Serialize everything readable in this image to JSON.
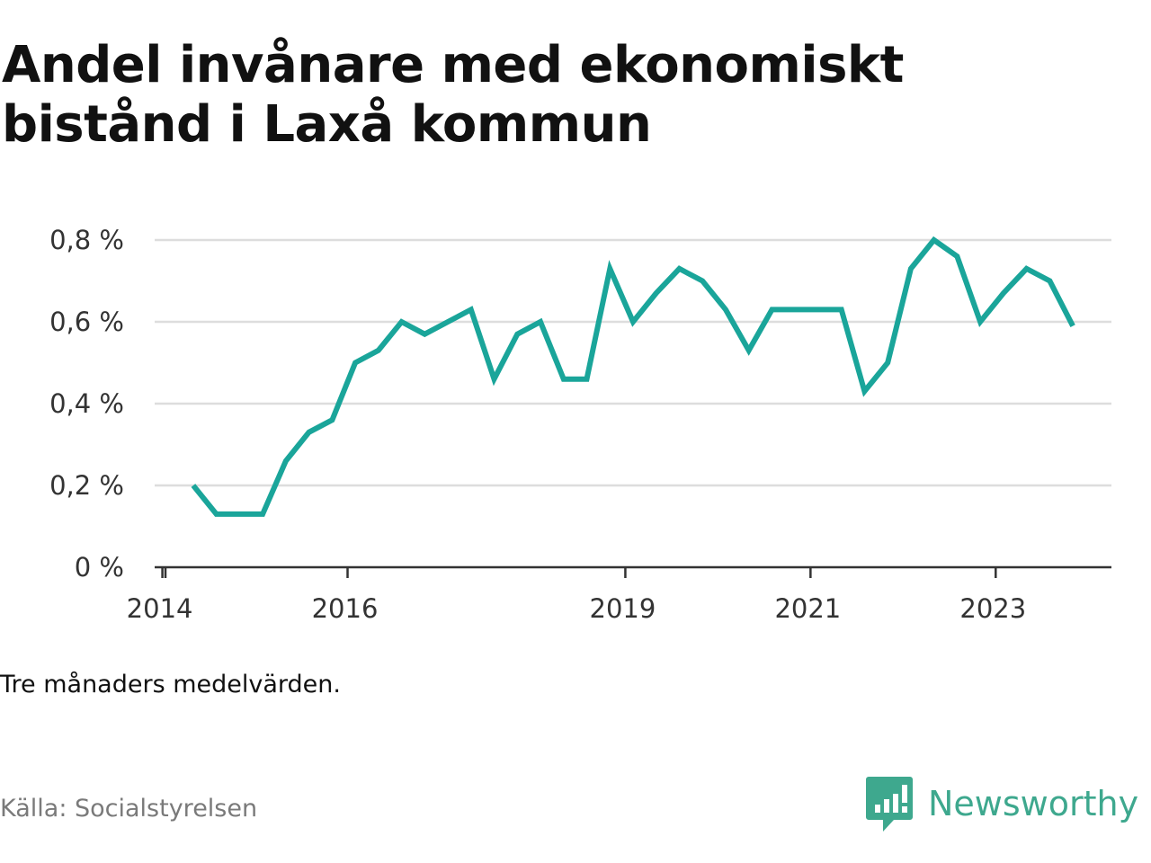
{
  "title_lines": [
    "Andel invånare med ekonomiskt",
    "bistånd i Laxå kommun"
  ],
  "note": "Tre månaders medelvärden.",
  "source": "Källa: Socialstyrelsen",
  "brand": {
    "name": "Newsworthy",
    "icon": "newsworthy-logo-icon",
    "color": "#3ea88e"
  },
  "colors": {
    "line": "#1aa59a",
    "grid": "#dddddd",
    "axis": "#333333"
  },
  "chart_data": {
    "type": "line",
    "title": "Andel invånare med ekonomiskt bistånd i Laxå kommun",
    "xlabel": "",
    "ylabel": "",
    "grid": true,
    "ylim": [
      0,
      0.8
    ],
    "yticks": [
      0,
      0.2,
      0.4,
      0.6,
      0.8
    ],
    "ytick_labels": [
      "0 %",
      "0,2 %",
      "0,4 %",
      "0,6 %",
      "0,8 %"
    ],
    "xlim": [
      "2013-12",
      "2024-04"
    ],
    "xticks": [
      "2014-01",
      "2016-01",
      "2019-01",
      "2021-01",
      "2023-01"
    ],
    "xtick_labels": [
      "2014",
      "2016",
      "2019",
      "2021",
      "2023"
    ],
    "series": [
      {
        "color": "#1aa59a",
        "x": [
          "2014-05",
          "2014-08",
          "2014-11",
          "2015-02",
          "2015-05",
          "2015-08",
          "2015-11",
          "2016-02",
          "2016-05",
          "2016-08",
          "2016-11",
          "2017-02",
          "2017-05",
          "2017-08",
          "2017-11",
          "2018-02",
          "2018-05",
          "2018-08",
          "2018-11",
          "2019-02",
          "2019-05",
          "2019-08",
          "2019-11",
          "2020-02",
          "2020-05",
          "2020-08",
          "2020-11",
          "2021-02",
          "2021-05",
          "2021-08",
          "2021-11",
          "2022-02",
          "2022-05",
          "2022-08",
          "2022-11",
          "2023-02",
          "2023-05",
          "2023-08",
          "2023-11"
        ],
        "y": [
          0.2,
          0.13,
          0.13,
          0.13,
          0.26,
          0.33,
          0.36,
          0.5,
          0.53,
          0.6,
          0.57,
          0.6,
          0.63,
          0.46,
          0.57,
          0.6,
          0.46,
          0.46,
          0.73,
          0.6,
          0.67,
          0.73,
          0.7,
          0.63,
          0.53,
          0.63,
          0.63,
          0.63,
          0.63,
          0.43,
          0.5,
          0.73,
          0.8,
          0.76,
          0.6,
          0.67,
          0.73,
          0.7,
          0.59
        ]
      }
    ]
  }
}
